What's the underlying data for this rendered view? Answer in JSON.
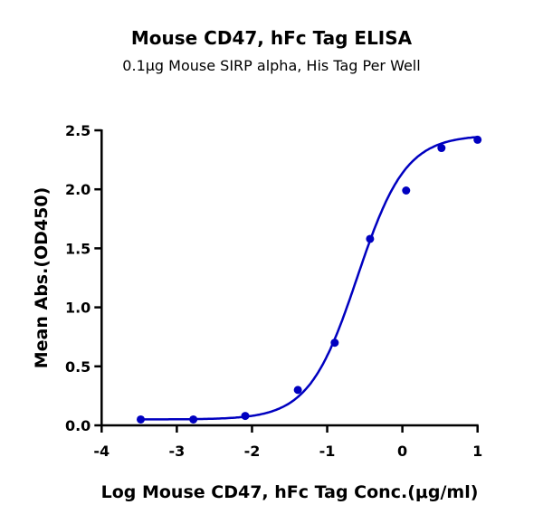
{
  "chart_data": {
    "type": "scatter",
    "title": "Mouse CD47, hFc Tag ELISA",
    "subtitle": "0.1μg Mouse SIRP alpha, His Tag Per Well",
    "xlabel": "Log Mouse CD47, hFc Tag Conc.(μg/ml)",
    "ylabel": "Mean Abs.(OD450)",
    "xlim": [
      -4,
      1
    ],
    "ylim": [
      0,
      2.5
    ],
    "xticks": [
      "-4",
      "-3",
      "-2",
      "-1",
      "0",
      "1"
    ],
    "yticks": [
      "0.0",
      "0.5",
      "1.0",
      "1.5",
      "2.0",
      "2.5"
    ],
    "grid": false,
    "color": "#0000c0",
    "x": [
      -3.48,
      -2.78,
      -2.09,
      -1.39,
      -0.9,
      -0.43,
      0.05,
      0.52,
      1.0
    ],
    "y": [
      0.05,
      0.05,
      0.08,
      0.3,
      0.7,
      1.58,
      1.99,
      2.35,
      2.42
    ],
    "fit": {
      "model": "4PL",
      "bottom": 0.05,
      "top": 2.46,
      "logEC50": -0.6,
      "hill": 1.35
    }
  }
}
